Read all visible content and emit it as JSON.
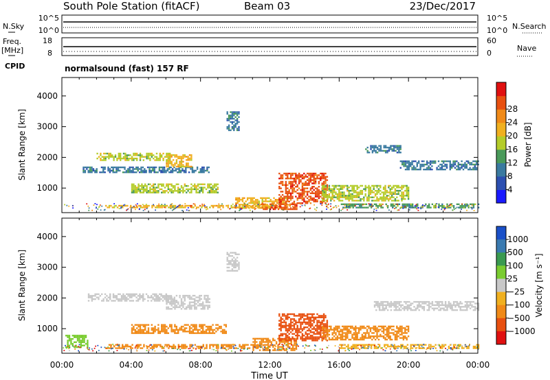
{
  "header": {
    "station": "South Pole Station (fitACF)",
    "beam": "Beam 03",
    "date": "23/Dec/2017"
  },
  "top_panels": {
    "nsky_label": "N.Sky",
    "nsky_ticks": [
      "10^5",
      "10^0"
    ],
    "nsearch_label": "N.Search",
    "nsearch_ticks": [
      "10^5",
      "10^0"
    ],
    "freq_label": "Freq.",
    "freq_unit": "[MHz]",
    "freq_ticks": [
      "18",
      "8"
    ],
    "nave_label": "Nave",
    "nave_ticks": [
      "60",
      "0"
    ],
    "cpid_label": "CPID",
    "cpid_text": "normalsound (fast) 157 RF"
  },
  "chart_data": [
    {
      "type": "heatmap",
      "panel": "power",
      "xlabel": "",
      "ylabel": "Slant Range [km]",
      "x_range_hours": [
        0,
        24
      ],
      "ylim": [
        200,
        4600
      ],
      "yticks": [
        1000,
        2000,
        3000,
        4000
      ],
      "colorbar_label": "Power [dB]",
      "colorbar_ticks": [
        "4",
        "8",
        "12",
        "16",
        "20",
        "24",
        "28"
      ],
      "colorbar_colors": [
        "#1a1aff",
        "#2c4fb0",
        "#3a7aa0",
        "#4a9a5a",
        "#b4cc2a",
        "#f0b020",
        "#f08a18",
        "#e85010",
        "#e01010"
      ],
      "colorbar_range": [
        0,
        30
      ],
      "echo_regions": [
        {
          "x0": 1.2,
          "x1": 8.5,
          "y0": 1500,
          "y1": 1700,
          "level": 8
        },
        {
          "x0": 2.0,
          "x1": 6.2,
          "y0": 1900,
          "y1": 2150,
          "level": 16
        },
        {
          "x0": 6.0,
          "x1": 7.5,
          "y0": 1700,
          "y1": 2100,
          "level": 20
        },
        {
          "x0": 4.0,
          "x1": 9.0,
          "y0": 850,
          "y1": 1150,
          "level": 14
        },
        {
          "x0": 9.5,
          "x1": 10.2,
          "y0": 2900,
          "y1": 3500,
          "level": 8
        },
        {
          "x0": 10.0,
          "x1": 13.0,
          "y0": 350,
          "y1": 700,
          "level": 20
        },
        {
          "x0": 11.5,
          "x1": 13.5,
          "y0": 300,
          "y1": 500,
          "level": 28
        },
        {
          "x0": 12.5,
          "x1": 15.3,
          "y0": 500,
          "y1": 1500,
          "level": 26
        },
        {
          "x0": 2.5,
          "x1": 12.0,
          "y0": 350,
          "y1": 450,
          "level": 20
        },
        {
          "x0": 15.0,
          "x1": 20.0,
          "y0": 600,
          "y1": 1100,
          "level": 14
        },
        {
          "x0": 17.5,
          "x1": 19.5,
          "y0": 2150,
          "y1": 2400,
          "level": 8
        },
        {
          "x0": 19.5,
          "x1": 24.0,
          "y0": 1600,
          "y1": 1900,
          "level": 8
        },
        {
          "x0": 16.0,
          "x1": 24.0,
          "y0": 350,
          "y1": 500,
          "level": 12
        }
      ]
    },
    {
      "type": "heatmap",
      "panel": "velocity",
      "xlabel": "Time UT",
      "ylabel": "Slant Range [km]",
      "x_range_hours": [
        0,
        24
      ],
      "xticks": [
        "00:00",
        "04:00",
        "08:00",
        "12:00",
        "16:00",
        "20:00",
        "00:00"
      ],
      "ylim": [
        200,
        4600
      ],
      "yticks": [
        1000,
        2000,
        3000,
        4000
      ],
      "colorbar_label": "Velocity [m s⁻¹]",
      "colorbar_ticks": [
        "1000",
        "500",
        "100",
        "25",
        "−25",
        "−100",
        "−500",
        "−1000"
      ],
      "colorbar_colors": [
        "#1a50c8",
        "#3a7ab0",
        "#3a9a50",
        "#7acc30",
        "#c8c8c8",
        "#f0b020",
        "#f08a18",
        "#e85010",
        "#e01010"
      ],
      "echo_regions": [
        {
          "x0": 1.5,
          "x1": 6.5,
          "y0": 1900,
          "y1": 2150,
          "color": "#c8c8c8"
        },
        {
          "x0": 6.0,
          "x1": 8.5,
          "y0": 1650,
          "y1": 2100,
          "color": "#c8c8c8"
        },
        {
          "x0": 4.0,
          "x1": 9.5,
          "y0": 850,
          "y1": 1150,
          "color": "#f08a18"
        },
        {
          "x0": 2.5,
          "x1": 12.0,
          "y0": 350,
          "y1": 500,
          "color": "#f08a18"
        },
        {
          "x0": 9.5,
          "x1": 10.2,
          "y0": 2900,
          "y1": 3500,
          "color": "#c8c8c8"
        },
        {
          "x0": 11.0,
          "x1": 13.5,
          "y0": 300,
          "y1": 700,
          "color": "#f08a18"
        },
        {
          "x0": 12.5,
          "x1": 15.3,
          "y0": 600,
          "y1": 1500,
          "color": "#e85010"
        },
        {
          "x0": 15.0,
          "x1": 20.0,
          "y0": 650,
          "y1": 1100,
          "color": "#f08a18"
        },
        {
          "x0": 18.0,
          "x1": 24.0,
          "y0": 1600,
          "y1": 1900,
          "color": "#c8c8c8"
        },
        {
          "x0": 16.0,
          "x1": 24.0,
          "y0": 350,
          "y1": 500,
          "color": "#f0b020"
        },
        {
          "x0": 0.2,
          "x1": 1.5,
          "y0": 400,
          "y1": 800,
          "color": "#7acc30"
        }
      ]
    }
  ]
}
